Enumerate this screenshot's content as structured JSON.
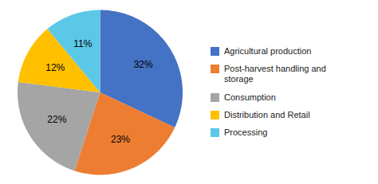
{
  "chart_data": {
    "type": "pie",
    "categories": [
      "Agricultural production",
      "Post-harvest handling and\nstorage",
      "Consumption",
      "Distribution and Retail",
      "Processing"
    ],
    "values": [
      32,
      23,
      22,
      12,
      11
    ],
    "value_labels": [
      "32%",
      "23%",
      "22%",
      "12%",
      "11%"
    ],
    "colors": [
      "#4472C4",
      "#ED7D31",
      "#A5A5A5",
      "#FFC000",
      "#5BC8E8"
    ],
    "data_labels": true,
    "legend": "right"
  }
}
